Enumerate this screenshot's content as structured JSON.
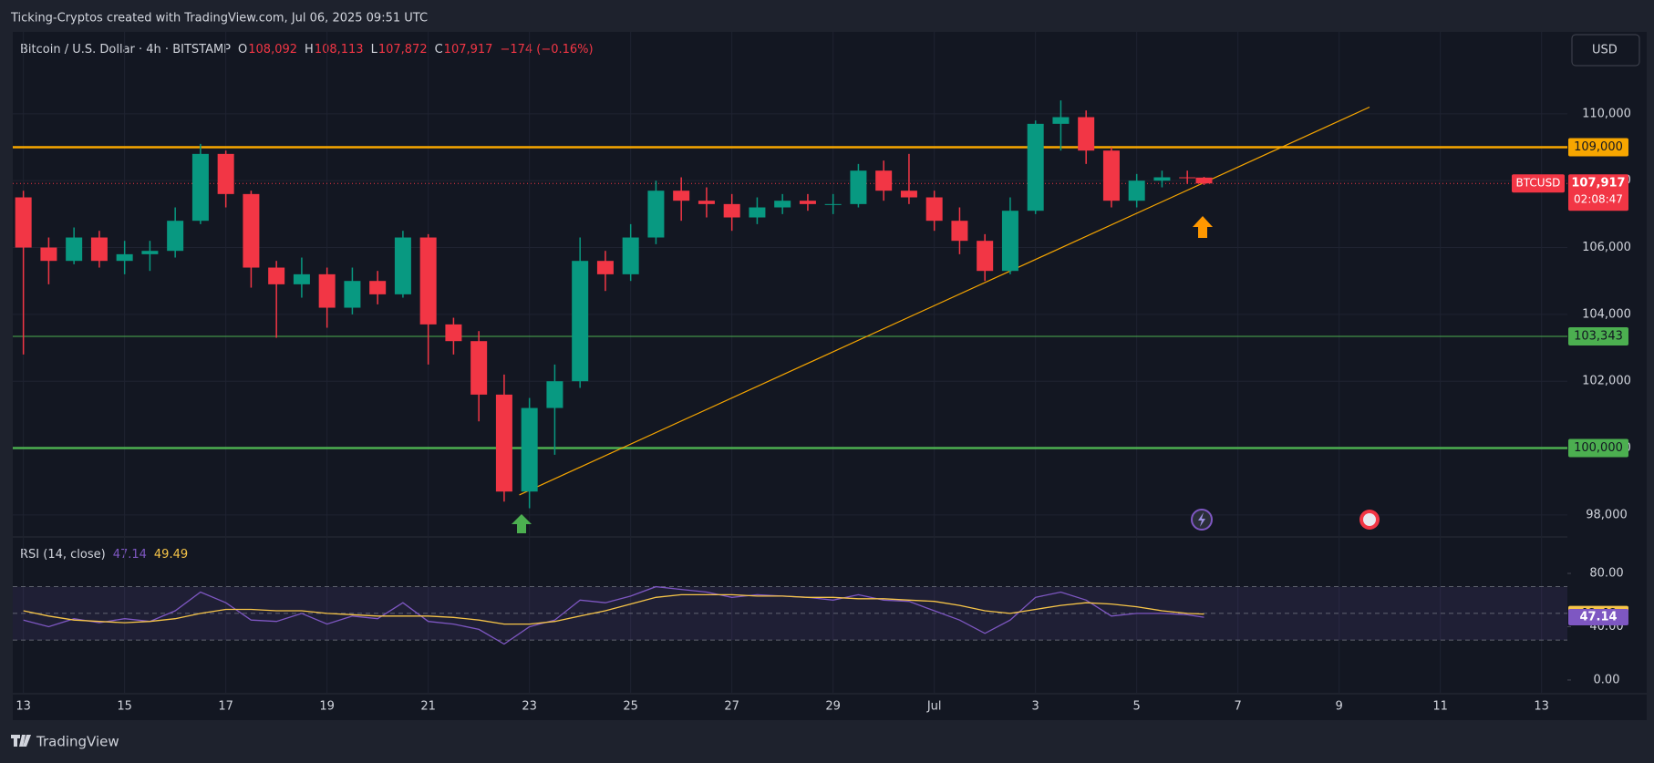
{
  "header": {
    "attribution": "Ticking-Cryptos created with TradingView.com, Jul 06, 2025 09:51 UTC",
    "currency": "USD"
  },
  "footer": {
    "brand": "TradingView"
  },
  "chart_data": [
    {
      "type": "candlestick",
      "title": "Bitcoin / U.S. Dollar · 4h · BITSTAMP",
      "legend_items": [
        {
          "key": "O",
          "text": "108,092"
        },
        {
          "key": "H",
          "text": "108,113"
        },
        {
          "key": "L",
          "text": "107,872"
        },
        {
          "key": "C",
          "text": "107,917"
        }
      ],
      "change": "−174 (−0.16%)",
      "up_color": "#089981",
      "down_color": "#f23645",
      "x": [
        13,
        13.5,
        14,
        14.5,
        15,
        15.5,
        16,
        16.5,
        17,
        17.5,
        18,
        18.5,
        19,
        19.5,
        20,
        20.5,
        21,
        21.5,
        22,
        22.5,
        23,
        23.5,
        24,
        24.5,
        25,
        25.5,
        26,
        26.5,
        27,
        27.5,
        28,
        28.5,
        29,
        29.5,
        30,
        30.5,
        31,
        31.5,
        32,
        32.5,
        33,
        33.5,
        34,
        34.5,
        35,
        35.5,
        36,
        36.33
      ],
      "open": [
        107500,
        106000,
        105600,
        106300,
        105600,
        105800,
        105900,
        106800,
        108800,
        107600,
        105400,
        104900,
        105200,
        104200,
        105000,
        104600,
        106300,
        103700,
        103200,
        101600,
        98700,
        101200,
        102000,
        105600,
        105200,
        106300,
        107700,
        107400,
        107300,
        106900,
        107200,
        107400,
        107300,
        107300,
        108300,
        107700,
        107500,
        106800,
        106200,
        105300,
        107100,
        109700,
        109900,
        108900,
        107400,
        108000,
        108100,
        108092
      ],
      "high": [
        107700,
        106300,
        106600,
        106500,
        106200,
        106200,
        107200,
        109100,
        108900,
        107700,
        105600,
        105700,
        105400,
        105400,
        105300,
        106500,
        106400,
        103900,
        103500,
        102200,
        101500,
        102500,
        106300,
        105900,
        106700,
        108000,
        108100,
        107800,
        107600,
        107500,
        107600,
        107600,
        107600,
        108500,
        108600,
        108800,
        107700,
        107200,
        106400,
        107500,
        109800,
        110400,
        110100,
        109000,
        108200,
        108300,
        108300,
        108113
      ],
      "low": [
        102800,
        104900,
        105500,
        105400,
        105200,
        105300,
        105700,
        106700,
        107200,
        104800,
        103300,
        104500,
        103600,
        104000,
        104300,
        104500,
        102500,
        102800,
        100800,
        98400,
        98200,
        99800,
        101800,
        104700,
        105000,
        106100,
        106800,
        106900,
        106500,
        106700,
        107000,
        107100,
        107000,
        107200,
        107400,
        107300,
        106500,
        105800,
        105000,
        105200,
        107000,
        108900,
        108500,
        107200,
        107200,
        107800,
        107900,
        107872
      ],
      "close": [
        106000,
        105600,
        106300,
        105600,
        105800,
        105900,
        106800,
        108800,
        107600,
        105400,
        104900,
        105200,
        104200,
        105000,
        104600,
        106300,
        103700,
        103200,
        101600,
        98700,
        101200,
        102000,
        105600,
        105200,
        106300,
        107700,
        107400,
        107300,
        106900,
        107200,
        107400,
        107300,
        107300,
        108300,
        107700,
        107500,
        106800,
        106200,
        105300,
        107100,
        109700,
        109900,
        108900,
        107400,
        108000,
        108100,
        108092,
        107917
      ],
      "xlim": [
        12.79,
        43.51
      ],
      "xticks": [
        13,
        15,
        17,
        19,
        21,
        23,
        25,
        27,
        29,
        {
          "value": 31,
          "label": "Jul"
        },
        {
          "value": 33,
          "label": "3"
        },
        {
          "value": 35,
          "label": "5"
        },
        {
          "value": 37,
          "label": "7"
        },
        {
          "value": 39,
          "label": "9"
        },
        {
          "value": 41,
          "label": "11"
        },
        {
          "value": 43,
          "label": "13"
        }
      ],
      "ylim": [
        97370,
        112450
      ],
      "yticks": [
        {
          "value": 98000,
          "label": "98,000"
        },
        {
          "value": 100000,
          "label": "100,000"
        },
        {
          "value": 102000,
          "label": "102,000"
        },
        {
          "value": 104000,
          "label": "104,000"
        },
        {
          "value": 106000,
          "label": "106,000"
        },
        {
          "value": 108000,
          "label": "108,000"
        },
        {
          "value": 110000,
          "label": "110,000"
        }
      ],
      "grid": true,
      "levels": [
        {
          "value": 109000,
          "label": "109,000",
          "color": "#f7a600"
        },
        {
          "value": 103343,
          "label": "103,343",
          "color": "#4caf50"
        },
        {
          "value": 100000,
          "label": "100,000",
          "color": "#4caf50"
        }
      ],
      "trendline": {
        "x": [
          22.8,
          39.6
        ],
        "y": [
          98600,
          110200
        ],
        "color": "#f7a600"
      },
      "last_price": {
        "symbol": "BTCUSD",
        "value": 107917,
        "label": "107,917",
        "countdown": "02:08:47",
        "color": "#f23645"
      }
    },
    {
      "type": "line",
      "title": "RSI (14, close)",
      "x": [
        13,
        13.5,
        14,
        14.5,
        15,
        15.5,
        16,
        16.5,
        17,
        17.5,
        18,
        18.5,
        19,
        19.5,
        20,
        20.5,
        21,
        21.5,
        22,
        22.5,
        23,
        23.5,
        24,
        24.5,
        25,
        25.5,
        26,
        26.5,
        27,
        27.5,
        28,
        28.5,
        29,
        29.5,
        30,
        30.5,
        31,
        31.5,
        32,
        32.5,
        33,
        33.5,
        34,
        34.5,
        35,
        35.5,
        36,
        36.33
      ],
      "series": [
        {
          "color": "#7e57c2",
          "values": [
            45,
            40,
            46,
            43,
            46,
            44,
            52,
            66,
            58,
            45,
            44,
            50,
            42,
            48,
            46,
            58,
            44,
            42,
            38,
            27,
            40,
            45,
            60,
            58,
            63,
            70,
            68,
            66,
            62,
            64,
            63,
            62,
            60,
            64,
            60,
            59,
            52,
            45,
            35,
            45,
            62,
            66,
            60,
            48,
            50,
            50,
            49,
            47.14
          ]
        },
        {
          "color": "#f7c548",
          "values": [
            52,
            48,
            45,
            44,
            43,
            44,
            46,
            50,
            53,
            53,
            52,
            52,
            50,
            49,
            48,
            48,
            48,
            47,
            45,
            42,
            42,
            44,
            48,
            52,
            57,
            62,
            64,
            64,
            64,
            63,
            63,
            62,
            62,
            61,
            61,
            60,
            59,
            56,
            52,
            50,
            53,
            56,
            58,
            57,
            55,
            52,
            50,
            49.49
          ]
        }
      ],
      "xlim": [
        12.79,
        43.51
      ],
      "ylim": [
        -9.6,
        106.7
      ],
      "yticks": [
        {
          "value": 0,
          "label": "0.00"
        },
        {
          "value": 40,
          "label": "40.00"
        },
        {
          "value": 80,
          "label": "80.00"
        }
      ],
      "levels": [
        30,
        50,
        70
      ]
    }
  ]
}
